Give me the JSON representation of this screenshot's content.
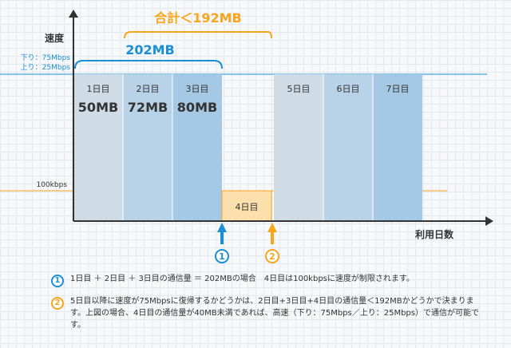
{
  "axis": {
    "y_label": "速度",
    "x_label": "利用日数",
    "speed_down": "下り：75Mbps",
    "speed_up": "上り：25Mbps",
    "low_speed": "100kbps"
  },
  "brackets": {
    "total_label": "合計＜192MB",
    "sum_label": "202MB"
  },
  "days": [
    {
      "label": "1日目",
      "usage": "50MB"
    },
    {
      "label": "2日目",
      "usage": "72MB"
    },
    {
      "label": "3日目",
      "usage": "80MB"
    },
    {
      "label": "4日目",
      "usage": ""
    },
    {
      "label": "5日目",
      "usage": ""
    },
    {
      "label": "6日目",
      "usage": ""
    },
    {
      "label": "7日目",
      "usage": ""
    }
  ],
  "markers": [
    {
      "num": "1",
      "color": "#1a8fd4"
    },
    {
      "num": "2",
      "color": "#f7a51d"
    }
  ],
  "notes": [
    {
      "num": "1",
      "text": "1日目 ＋ 2日目 ＋ 3日目の通信量 ＝ 202MBの場合　4日目は100kbpsに速度が制限されます。"
    },
    {
      "num": "2",
      "text": "5日目以降に速度が75Mbpsに復帰するかどうかは、2日目+3日目+4日目の通信量＜192MBかどうかで決まります。上図の場合、4日目の通信量が40MB未満であれば、高速（下り：75Mbps／上り：25Mbps）で通信が可能です。"
    }
  ],
  "colors": {
    "blue": "#1a8fd4",
    "orange": "#f7a51d",
    "bar_light": "#cfdce6",
    "bar_mid": "#b8d3e8",
    "bar_dark": "#a5c9e4",
    "bar_orange": "#fbe0ad"
  }
}
